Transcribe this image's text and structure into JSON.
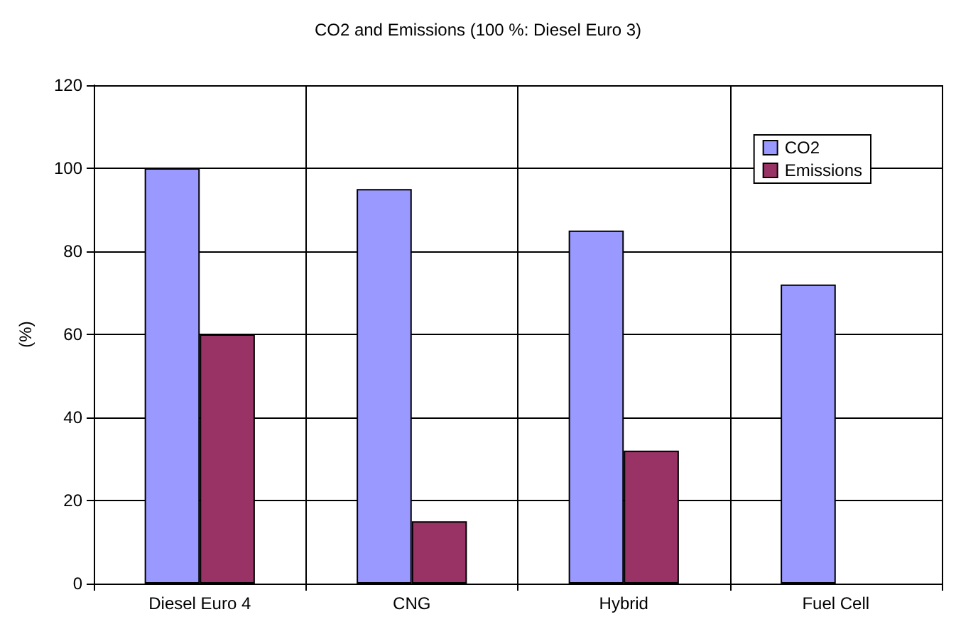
{
  "chart_data": {
    "type": "bar",
    "title": "CO2 and Emissions (100 %: Diesel Euro 3)",
    "ylabel": "(%)",
    "categories": [
      "Diesel Euro 4",
      "CNG",
      "Hybrid",
      "Fuel Cell"
    ],
    "series": [
      {
        "name": "CO2",
        "color": "#9999ff",
        "values": [
          100,
          95,
          85,
          72
        ]
      },
      {
        "name": "Emissions",
        "color": "#993366",
        "values": [
          60,
          15,
          32,
          null
        ]
      }
    ],
    "ylim": [
      0,
      120
    ],
    "yticks": [
      0,
      20,
      40,
      60,
      80,
      100,
      120
    ],
    "grid": true,
    "legend": "top right"
  }
}
